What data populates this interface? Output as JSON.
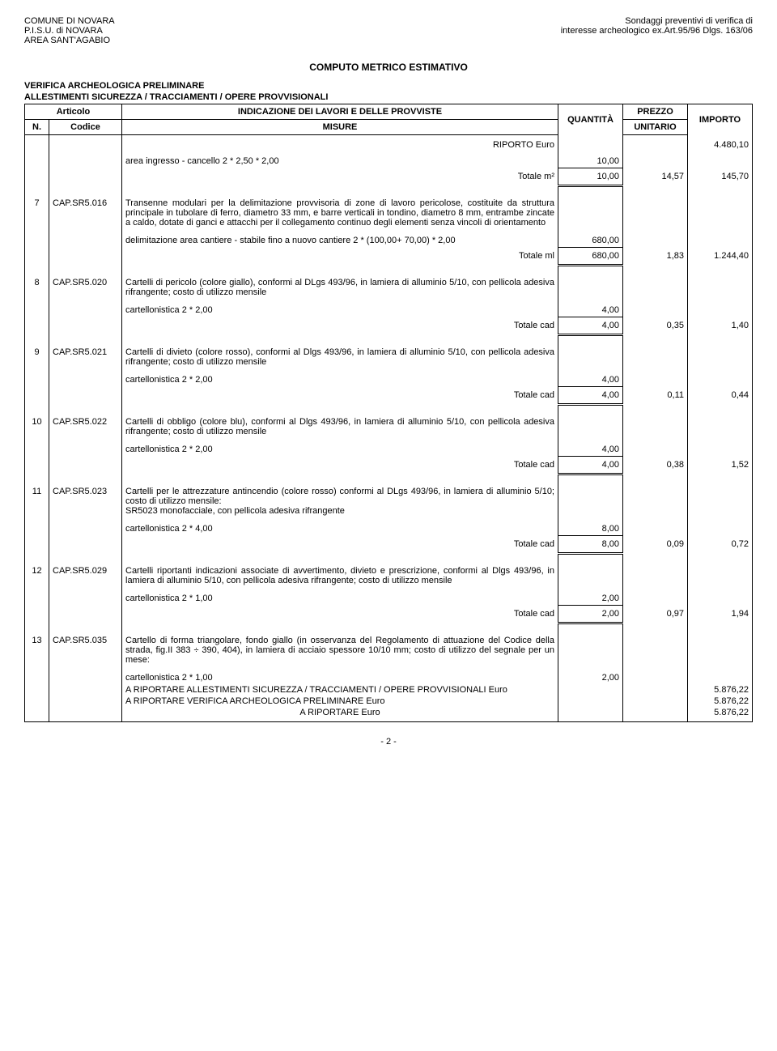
{
  "header": {
    "left1": "COMUNE DI NOVARA",
    "left2": "P.I.S.U. di NOVARA",
    "left3": "AREA SANT'AGABIO",
    "right1": "Sondaggi preventivi di verifica di",
    "right2": "interesse archeologico ex.Art.95/96 Dlgs. 163/06"
  },
  "doc_title": "COMPUTO METRICO ESTIMATIVO",
  "section1": "VERIFICA ARCHEOLOGICA PRELIMINARE",
  "section2": "ALLESTIMENTI SICUREZZA / TRACCIAMENTI / OPERE PROVVISIONALI",
  "thead": {
    "articolo": "Articolo",
    "indicazione": "INDICAZIONE DEI LAVORI E DELLE PROVVISTE",
    "quantita": "QUANTITÀ",
    "prezzo": "PREZZO",
    "importo": "IMPORTO",
    "n": "N.",
    "codice": "Codice",
    "misure": "MISURE",
    "unitario": "UNITARIO"
  },
  "riporto": {
    "label": "RIPORTO Euro",
    "value": "4.480,10"
  },
  "rows": [
    {
      "pre_desc": {
        "text": "area ingresso - cancello  2 * 2,50 * 2,00",
        "qty": "10,00"
      },
      "total": {
        "label": "Totale m²",
        "qty": "10,00",
        "unit": "14,57",
        "imp": "145,70"
      }
    },
    {
      "n": "7",
      "code": "CAP.SR5.016",
      "desc": "Transenne modulari per la delimitazione provvisoria di zone di lavoro pericolose, costituite da struttura principale in tubolare di ferro, diametro 33 mm, e barre verticali in tondino, diametro 8 mm, entrambe zincate a caldo, dotate di ganci e attacchi per il collegamento continuo degli elementi senza vincoli di orientamento",
      "sub": {
        "text": "delimitazione area cantiere - stabile fino a nuovo cantiere   2 * (100,00+ 70,00) * 2,00",
        "qty": "680,00"
      },
      "total": {
        "label": "Totale ml",
        "qty": "680,00",
        "unit": "1,83",
        "imp": "1.244,40"
      }
    },
    {
      "n": "8",
      "code": "CAP.SR5.020",
      "desc": "Cartelli di pericolo (colore giallo), conformi al DLgs 493/96, in lamiera di alluminio 5/10, con pellicola adesiva rifrangente; costo di utilizzo mensile",
      "sub": {
        "text": "cartellonistica  2 * 2,00",
        "qty": "4,00"
      },
      "total": {
        "label": "Totale cad",
        "qty": "4,00",
        "unit": "0,35",
        "imp": "1,40"
      }
    },
    {
      "n": "9",
      "code": "CAP.SR5.021",
      "desc": "Cartelli di divieto (colore rosso), conformi al Dlgs 493/96, in lamiera di alluminio 5/10, con pellicola adesiva rifrangente; costo di utilizzo mensile",
      "sub": {
        "text": "cartellonistica  2 * 2,00",
        "qty": "4,00"
      },
      "total": {
        "label": "Totale cad",
        "qty": "4,00",
        "unit": "0,11",
        "imp": "0,44"
      }
    },
    {
      "n": "10",
      "code": "CAP.SR5.022",
      "desc": "Cartelli di obbligo (colore blu), conformi al Dlgs 493/96, in lamiera di alluminio 5/10, con pellicola adesiva rifrangente; costo di utilizzo mensile",
      "sub": {
        "text": "cartellonistica  2 * 2,00",
        "qty": "4,00"
      },
      "total": {
        "label": "Totale cad",
        "qty": "4,00",
        "unit": "0,38",
        "imp": "1,52"
      }
    },
    {
      "n": "11",
      "code": "CAP.SR5.023",
      "desc": "Cartelli per le attrezzature antincendio (colore rosso) conformi al DLgs 493/96, in lamiera di alluminio 5/10; costo di utilizzo mensile:\nSR5023   monofacciale, con pellicola adesiva rifrangente",
      "sub": {
        "text": "cartellonistica  2 * 4,00",
        "qty": "8,00"
      },
      "total": {
        "label": "Totale cad",
        "qty": "8,00",
        "unit": "0,09",
        "imp": "0,72"
      }
    },
    {
      "n": "12",
      "code": "CAP.SR5.029",
      "desc": "Cartelli riportanti indicazioni associate di avvertimento, divieto e prescrizione, conformi al Dlgs 493/96, in lamiera di alluminio 5/10, con pellicola adesiva rifrangente; costo di utilizzo mensile",
      "sub": {
        "text": "cartellonistica  2 * 1,00",
        "qty": "2,00"
      },
      "total": {
        "label": "Totale cad",
        "qty": "2,00",
        "unit": "0,97",
        "imp": "1,94"
      }
    },
    {
      "n": "13",
      "code": "CAP.SR5.035",
      "desc": "Cartello di forma triangolare, fondo giallo (in osservanza del Regolamento di attuazione del Codice della strada, fig.II 383 ÷ 390, 404), in lamiera di acciaio spessore 10/10 mm; costo di utilizzo del segnale per un mese:",
      "sub": {
        "text": "cartellonistica  2 * 1,00",
        "qty": "2,00"
      }
    }
  ],
  "footer": {
    "l1": {
      "label": "A RIPORTARE ALLESTIMENTI SICUREZZA / TRACCIAMENTI / OPERE PROVVISIONALI Euro",
      "val": "5.876,22"
    },
    "l2": {
      "label": "A RIPORTARE VERIFICA ARCHEOLOGICA PRELIMINARE Euro",
      "val": "5.876,22"
    },
    "l3": {
      "label": "A RIPORTARE Euro",
      "val": "5.876,22"
    }
  },
  "pagenum": "- 2 -"
}
